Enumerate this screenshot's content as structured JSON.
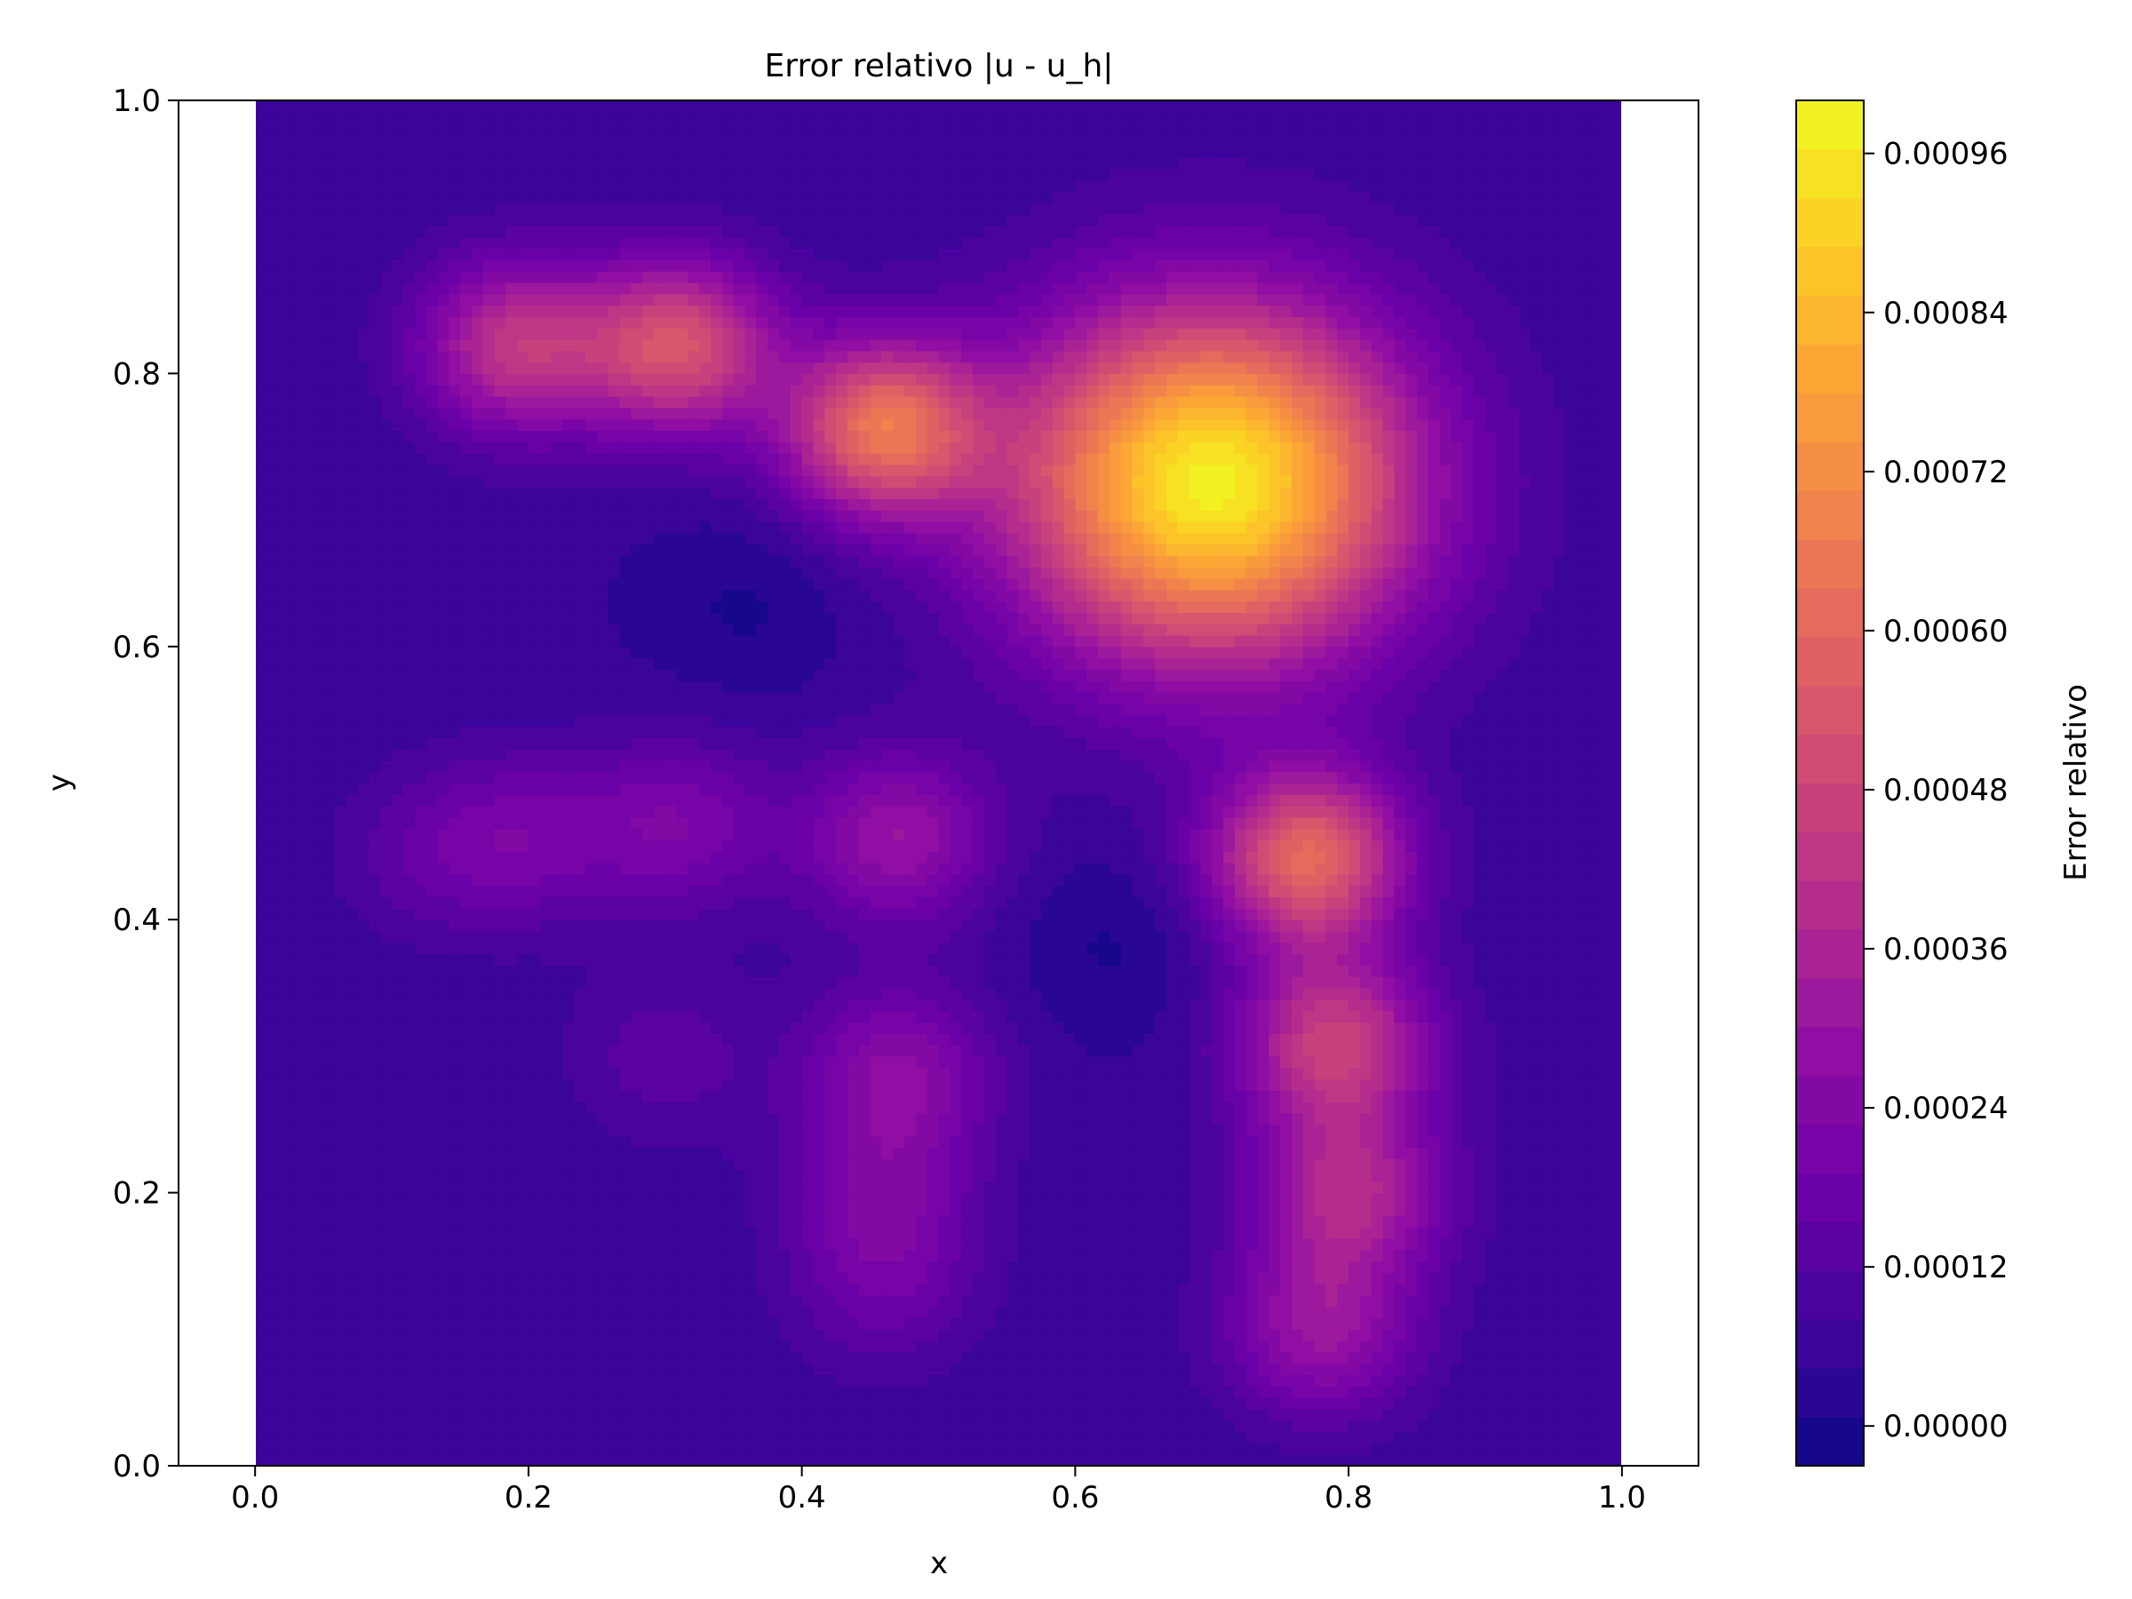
{
  "chart_data": {
    "type": "heatmap",
    "title": "Error relativo |u - u_h|",
    "xlabel": "x",
    "ylabel": "y",
    "xlim": [
      -0.056,
      1.056
    ],
    "ylim": [
      0.0,
      1.0
    ],
    "data_extent": {
      "x": [
        0.0,
        1.0
      ],
      "y": [
        0.0,
        1.0
      ]
    },
    "x_ticks": [
      "0.0",
      "0.2",
      "0.4",
      "0.6",
      "0.8",
      "1.0"
    ],
    "x_tick_values": [
      0.0,
      0.2,
      0.4,
      0.6,
      0.8,
      1.0
    ],
    "y_ticks": [
      "0.0",
      "0.2",
      "0.4",
      "0.6",
      "0.8",
      "1.0"
    ],
    "y_tick_values": [
      0.0,
      0.2,
      0.4,
      0.6,
      0.8,
      1.0
    ],
    "colormap": "plasma",
    "colorbar": {
      "label": "Error relativo",
      "range": [
        -3e-05,
        0.001
      ],
      "ticks": [
        "0.00000",
        "0.00012",
        "0.00024",
        "0.00036",
        "0.00048",
        "0.00060",
        "0.00072",
        "0.00084",
        "0.00096"
      ],
      "tick_values": [
        0.0,
        0.00012,
        0.00024,
        0.00036,
        0.00048,
        0.0006,
        0.00072,
        0.00084,
        0.00096
      ],
      "levels": 28
    },
    "grid": false,
    "field_features": [
      {
        "x": 0.7,
        "y": 0.72,
        "value": 0.00098,
        "note": "peak"
      },
      {
        "x": 0.46,
        "y": 0.76,
        "value": 0.00062
      },
      {
        "x": 0.31,
        "y": 0.82,
        "value": 0.00052
      },
      {
        "x": 0.19,
        "y": 0.82,
        "value": 0.00042
      },
      {
        "x": 0.77,
        "y": 0.445,
        "value": 0.0006
      },
      {
        "x": 0.79,
        "y": 0.31,
        "value": 0.00046
      },
      {
        "x": 0.8,
        "y": 0.2,
        "value": 0.00037
      },
      {
        "x": 0.78,
        "y": 0.1,
        "value": 0.0003
      },
      {
        "x": 0.47,
        "y": 0.46,
        "value": 0.0003
      },
      {
        "x": 0.47,
        "y": 0.29,
        "value": 0.00026
      },
      {
        "x": 0.46,
        "y": 0.2,
        "value": 0.0002
      },
      {
        "x": 0.46,
        "y": 0.13,
        "value": 0.00016
      },
      {
        "x": 0.31,
        "y": 0.47,
        "value": 0.00022
      },
      {
        "x": 0.2,
        "y": 0.46,
        "value": 0.00018
      },
      {
        "x": 0.13,
        "y": 0.45,
        "value": 0.00014
      },
      {
        "x": 0.3,
        "y": 0.3,
        "value": 0.00014
      },
      {
        "x": 0.36,
        "y": 0.63,
        "value": 0.0,
        "note": "minimum"
      },
      {
        "x": 0.63,
        "y": 0.38,
        "value": 0.0,
        "note": "minimum"
      }
    ]
  }
}
